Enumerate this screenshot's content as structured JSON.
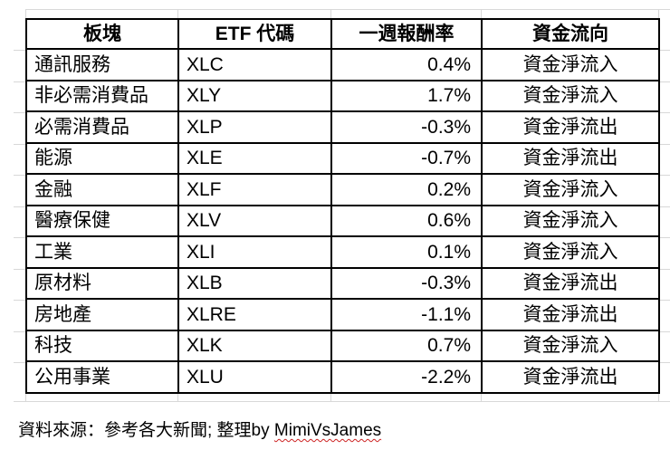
{
  "chart_data": {
    "type": "table",
    "columns": [
      "板塊",
      "ETF 代碼",
      "一週報酬率",
      "資金流向"
    ],
    "rows": [
      [
        "通訊服務",
        "XLC",
        "0.4%",
        "資金淨流入"
      ],
      [
        "非必需消費品",
        "XLY",
        "1.7%",
        "資金淨流入"
      ],
      [
        "必需消費品",
        "XLP",
        "-0.3%",
        "資金淨流出"
      ],
      [
        "能源",
        "XLE",
        "-0.7%",
        "資金淨流出"
      ],
      [
        "金融",
        "XLF",
        "0.2%",
        "資金淨流入"
      ],
      [
        "醫療保健",
        "XLV",
        "0.6%",
        "資金淨流入"
      ],
      [
        "工業",
        "XLI",
        "0.1%",
        "資金淨流入"
      ],
      [
        "原材料",
        "XLB",
        "-0.3%",
        "資金淨流出"
      ],
      [
        "房地產",
        "XLRE",
        "-1.1%",
        "資金淨流出"
      ],
      [
        "科技",
        "XLK",
        "0.7%",
        "資金淨流入"
      ],
      [
        "公用事業",
        "XLU",
        "-2.2%",
        "資金淨流出"
      ]
    ],
    "annotations": [
      "資料來源：參考各大新聞; 整理by MimiVsJames"
    ],
    "column_alignment": [
      "left",
      "left",
      "right",
      "center"
    ],
    "grid": "on"
  },
  "footer": {
    "prefix": "資料來源：參考各大新聞; 整理by ",
    "author": "MimiVsJames"
  },
  "colors": {
    "background": "#ffffff",
    "table_border": "#000000",
    "text": "#000000",
    "faint_gridline": "#d8d8d8",
    "spellcheck_underline": "#cc2222"
  }
}
